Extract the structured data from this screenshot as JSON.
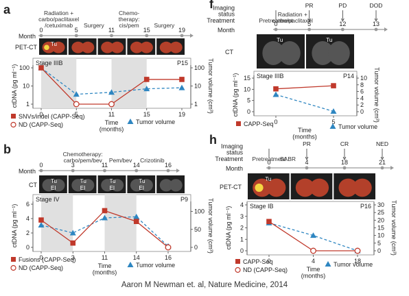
{
  "caption": "Aaron M Newman et. al, Nature Medicine, 2014",
  "colors": {
    "ctdna": "#c0392b",
    "tumor": "#2e86c1",
    "shade": "#e0e0e0",
    "scan_bg": "#1e1e1e"
  },
  "chart_data": [
    {
      "letter": "a",
      "type": "line",
      "row_labels": [
        "Month",
        "PET-CT"
      ],
      "timeline": {
        "months": [
          "0",
          "5",
          "11",
          "15",
          "19"
        ],
        "events": [
          {
            "text": "Radiation +\ncarbo/paclitaxel\n/cetuximab",
            "at": 2.5
          },
          {
            "text": "Surgery",
            "at": 8
          },
          {
            "text": "Chemo-\ntherapy:\ncis/pem",
            "at": 13
          },
          {
            "text": "Surgery",
            "at": 17
          }
        ]
      },
      "scan_labels": [
        {
          "frame": 0,
          "text": "Tu"
        }
      ],
      "stage": "Stage IIIB",
      "patient": "P15",
      "ylabel": "ctDNA (pg ml⁻¹)",
      "y2label": "Tumor volume (cm³)",
      "xlabel": "Time\n(months)",
      "yscale": "log",
      "ylim": [
        1,
        100
      ],
      "yticks": [
        "1",
        "10",
        "100"
      ],
      "y2ticks": [
        "1",
        "10",
        "100"
      ],
      "x": [
        0,
        5,
        11,
        15,
        19
      ],
      "shaded": [
        [
          0,
          5
        ],
        [
          11,
          15
        ]
      ],
      "ctdna": [
        {
          "x": 0,
          "y": 100,
          "nd": false
        },
        {
          "x": 5,
          "y": 1,
          "nd": true
        },
        {
          "x": 11,
          "y": 1,
          "nd": true
        },
        {
          "x": 15,
          "y": 23,
          "nd": false
        },
        {
          "x": 19,
          "y": 23,
          "nd": false
        }
      ],
      "tumor": [
        {
          "x": 0,
          "y": 100
        },
        {
          "x": 5,
          "y": 3.5
        },
        {
          "x": 11,
          "y": 4.5
        },
        {
          "x": 15,
          "y": 7
        },
        {
          "x": 19,
          "y": 8
        }
      ],
      "legend_ctdna": "SNVs/indel (CAPP-Seq)",
      "legend_nd": "ND (CAPP-Seq)",
      "legend_tumor": "Tumor volume"
    },
    {
      "letter": "b",
      "type": "line",
      "row_labels": [
        "Month",
        "CT"
      ],
      "timeline": {
        "months": [
          "0",
          "3",
          "11",
          "14",
          "16"
        ],
        "events": [
          {
            "text": "Chemotherapy:\ncarbo/pem/bev",
            "at": 5.5
          },
          {
            "text": "Pem/bev",
            "at": 12.5
          },
          {
            "text": "Crizotinib",
            "at": 15
          }
        ]
      },
      "scan_labels": [
        {
          "frame": 0,
          "text": "Tu"
        },
        {
          "frame": 0,
          "text": "EI"
        },
        {
          "frame": 1,
          "text": "Tu"
        },
        {
          "frame": 1,
          "text": "EI"
        },
        {
          "frame": 2,
          "text": "Tu"
        },
        {
          "frame": 2,
          "text": "EI"
        },
        {
          "frame": 3,
          "text": "Tu"
        },
        {
          "frame": 3,
          "text": "EI"
        }
      ],
      "stage": "Stage IV",
      "patient": "P9",
      "ylabel": "ctDNA (pg ml⁻¹)",
      "y2label": "Tumor volume (cm³)",
      "xlabel": "Time\n(months)",
      "yscale": "linear",
      "ylim": [
        0,
        6
      ],
      "y2lim": [
        0,
        120
      ],
      "yticks": [
        "0",
        "2",
        "4",
        "6"
      ],
      "y2ticks": [
        "0",
        "50",
        "100"
      ],
      "x": [
        0,
        3,
        11,
        14,
        16
      ],
      "shaded": [
        [
          0,
          3
        ],
        [
          11,
          14
        ]
      ],
      "ctdna": [
        {
          "x": 0,
          "y": 3.8,
          "nd": false
        },
        {
          "x": 3,
          "y": 0.6,
          "nd": false
        },
        {
          "x": 11,
          "y": 5.1,
          "nd": false
        },
        {
          "x": 14,
          "y": 3.6,
          "nd": false
        },
        {
          "x": 16,
          "y": 0,
          "nd": true
        }
      ],
      "tumor": [
        {
          "x": 0,
          "y": 62
        },
        {
          "x": 3,
          "y": 40
        },
        {
          "x": 11,
          "y": 82
        },
        {
          "x": 14,
          "y": 85
        },
        {
          "x": 16,
          "y": 3
        }
      ],
      "legend_ctdna": "Fusions (CAPP-Seq)",
      "legend_nd": "ND (CAPP-Seq)",
      "legend_tumor": "Tumor volume"
    },
    {
      "letter": "f",
      "type": "line",
      "row_labels": [
        "Imaging\nstatus",
        "Treatment",
        "Month",
        "CT"
      ],
      "timeline": {
        "months": [
          "0",
          "5",
          "12",
          "13"
        ],
        "events": [
          {
            "text": "Pretreatment",
            "at": 0
          },
          {
            "text": "Radiation +\ncarbo/paclitaxel",
            "at": 2.5
          }
        ],
        "status": [
          {
            "text": "PR",
            "at": 5
          },
          {
            "text": "PD",
            "at": 12
          },
          {
            "text": "DOD",
            "at": 13
          }
        ]
      },
      "scan_labels": [
        {
          "frame": 0,
          "text": "Tu"
        },
        {
          "frame": 1,
          "text": "Tu"
        }
      ],
      "stage": "Stage IIIB",
      "patient": "P14",
      "ylabel": "ctDNA (pg ml⁻¹)",
      "y2label": "Tumor volume (cm³)",
      "xlabel": "Time\n(months)",
      "yscale": "linear",
      "ylim": [
        0,
        15
      ],
      "y2lim": [
        0,
        10
      ],
      "yticks": [
        "0",
        "5",
        "10",
        "15"
      ],
      "y2ticks": [
        "0",
        "2",
        "4",
        "6",
        "8",
        "10"
      ],
      "x": [
        0,
        5
      ],
      "shaded": [],
      "ctdna": [
        {
          "x": 0,
          "y": 10.2,
          "nd": false
        },
        {
          "x": 5,
          "y": 11.6,
          "nd": false
        }
      ],
      "tumor": [
        {
          "x": 0,
          "y": 5.1
        },
        {
          "x": 5,
          "y": 0.1
        }
      ],
      "legend_ctdna": "CAPP-Seq",
      "legend_tumor": "Tumor volume"
    },
    {
      "letter": "h",
      "type": "line",
      "row_labels": [
        "Imaging\nstatus",
        "Treatment",
        "Month",
        "PET-CT"
      ],
      "timeline": {
        "months": [
          "0",
          "4",
          "18",
          "21"
        ],
        "events": [
          {
            "text": "Pretreatment",
            "at": 0
          },
          {
            "text": "SABR",
            "at": 2
          }
        ],
        "status": [
          {
            "text": "PR",
            "at": 4
          },
          {
            "text": "CR",
            "at": 18
          },
          {
            "text": "NED",
            "at": 21
          }
        ]
      },
      "scan_labels": [
        {
          "frame": 0,
          "text": "Tu"
        }
      ],
      "stage": "Stage IB",
      "patient": "P16",
      "ylabel": "ctDNA (pg ml⁻¹)",
      "y2label": "Tumor volume (cm³)",
      "xlabel": "Time\n(months)",
      "yscale": "linear",
      "ylim": [
        0,
        4
      ],
      "y2lim": [
        0,
        30
      ],
      "yticks": [
        "0",
        "1",
        "2",
        "3",
        "4"
      ],
      "y2ticks": [
        "0",
        "5",
        "10",
        "15",
        "20",
        "25",
        "30"
      ],
      "x": [
        0,
        4,
        18
      ],
      "shaded": [],
      "ctdna": [
        {
          "x": 0,
          "y": 2.55,
          "nd": false
        },
        {
          "x": 4,
          "y": 0,
          "nd": true
        },
        {
          "x": 18,
          "y": 0,
          "nd": true
        }
      ],
      "tumor": [
        {
          "x": 0,
          "y": 18.2
        },
        {
          "x": 4,
          "y": 10
        },
        {
          "x": 18,
          "y": 0
        }
      ],
      "legend_ctdna": "CAPP-Seq",
      "legend_nd": "ND (CAPP-Seq)",
      "legend_tumor": "Tumor volume"
    }
  ]
}
